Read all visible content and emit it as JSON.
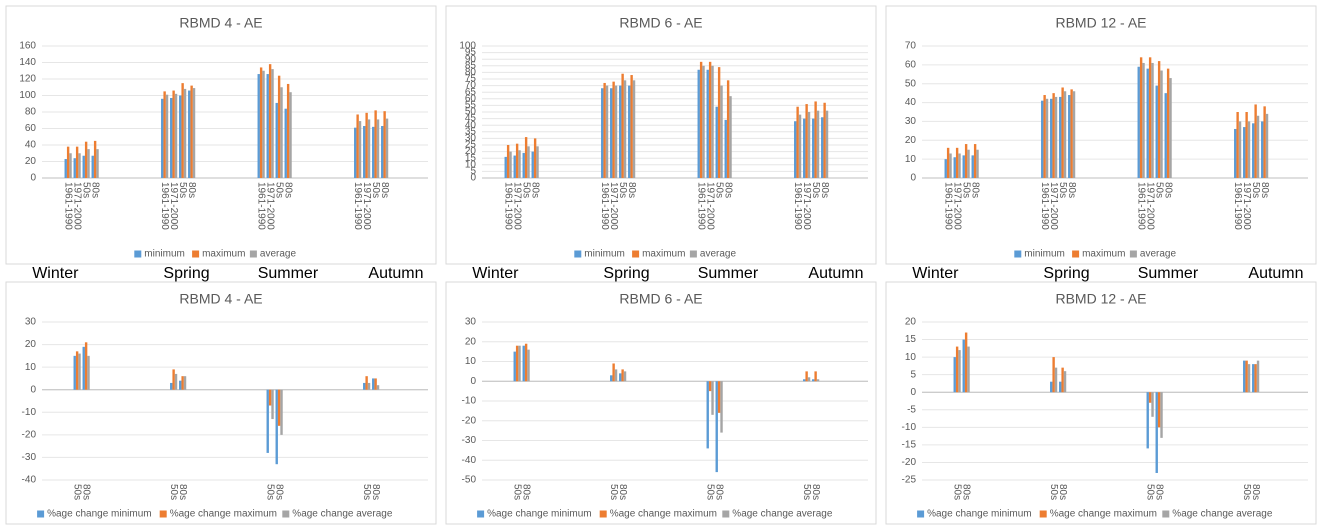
{
  "chart_data": [
    {
      "type": "bar",
      "title": "RBMD 4 - AE",
      "categories": [
        "1961-1990",
        "1971-2000",
        "50s",
        "80s",
        "1961-1990",
        "1971-2000",
        "50s",
        "80s",
        "1961-1990",
        "1971-2000",
        "50s",
        "80s",
        "1961-1990",
        "1971-2000",
        "50s",
        "80s"
      ],
      "series": [
        {
          "name": "minimum",
          "color": "#5b9bd5",
          "values": [
            23,
            24,
            27,
            27,
            96,
            97,
            100,
            106,
            126,
            126,
            91,
            84,
            61,
            63,
            62,
            63
          ]
        },
        {
          "name": "maximum",
          "color": "#ed7d31",
          "values": [
            38,
            38,
            44,
            45,
            105,
            106,
            115,
            112,
            134,
            138,
            124,
            114,
            77,
            79,
            82,
            81
          ]
        },
        {
          "name": "average",
          "color": "#a5a5a5",
          "values": [
            30,
            30,
            35,
            35,
            101,
            102,
            108,
            109,
            130,
            132,
            110,
            104,
            69,
            71,
            71,
            72
          ]
        }
      ],
      "ylim": [
        0,
        160
      ],
      "yticks": [
        0,
        20,
        40,
        60,
        80,
        100,
        120,
        140,
        160
      ],
      "grid": true,
      "legend": "bottom",
      "season_labels": [
        "Winter",
        "Spring",
        "Summer",
        "Autumn"
      ]
    },
    {
      "type": "bar",
      "title": "RBMD 6 - AE",
      "categories": [
        "1961-1990",
        "1971-2000",
        "50s",
        "80s",
        "1961-1990",
        "1971-2000",
        "50s",
        "80s",
        "1961-1990",
        "1971-2000",
        "50s",
        "80s",
        "1961-1990",
        "1971-2000",
        "50s",
        "80s"
      ],
      "series": [
        {
          "name": "minimum",
          "color": "#5b9bd5",
          "values": [
            16,
            17,
            19,
            20,
            68,
            68,
            70,
            70,
            82,
            82,
            54,
            44,
            43,
            45,
            45,
            46
          ]
        },
        {
          "name": "maximum",
          "color": "#ed7d31",
          "values": [
            25,
            26,
            31,
            30,
            72,
            73,
            79,
            78,
            88,
            88,
            84,
            74,
            54,
            56,
            58,
            57
          ]
        },
        {
          "name": "average",
          "color": "#a5a5a5",
          "values": [
            20,
            21,
            24,
            24,
            70,
            70,
            74,
            74,
            85,
            85,
            70,
            62,
            48,
            50,
            51,
            51
          ]
        }
      ],
      "ylim": [
        0,
        100
      ],
      "yticks": [
        0,
        5,
        10,
        15,
        20,
        25,
        30,
        35,
        40,
        45,
        50,
        55,
        60,
        65,
        70,
        75,
        80,
        85,
        90,
        95,
        100
      ],
      "grid": true,
      "legend": "bottom",
      "season_labels": [
        "Winter",
        "Spring",
        "Summer",
        "Autumn"
      ]
    },
    {
      "type": "bar",
      "title": "RBMD 12 - AE",
      "categories": [
        "1961-1990",
        "1971-2000",
        "50s",
        "80s",
        "1961-1990",
        "1971-2000",
        "50s",
        "80s",
        "1961-1990",
        "1971-2000",
        "50s",
        "80s",
        "1961-1990",
        "1971-2000",
        "50s",
        "80s"
      ],
      "series": [
        {
          "name": "minimum",
          "color": "#5b9bd5",
          "values": [
            10,
            11,
            12,
            12,
            41,
            42,
            43,
            44,
            59,
            58,
            49,
            45,
            26,
            27,
            29,
            30
          ]
        },
        {
          "name": "maximum",
          "color": "#ed7d31",
          "values": [
            16,
            16,
            18,
            18,
            44,
            45,
            48,
            47,
            64,
            64,
            62,
            58,
            35,
            35,
            39,
            38
          ]
        },
        {
          "name": "average",
          "color": "#a5a5a5",
          "values": [
            13,
            13,
            15,
            15,
            42,
            43,
            46,
            46,
            61,
            61,
            57,
            53,
            30,
            30,
            33,
            34
          ]
        }
      ],
      "ylim": [
        0,
        70
      ],
      "yticks": [
        0,
        10,
        20,
        30,
        40,
        50,
        60,
        70
      ],
      "grid": true,
      "legend": "bottom",
      "season_labels": [
        "Winter",
        "Spring",
        "Summer",
        "Autumn"
      ]
    },
    {
      "type": "bar",
      "title": "RBMD 4 - AE",
      "categories": [
        "50s",
        "80s",
        "50s",
        "80s",
        "50s",
        "80s",
        "50s",
        "80s"
      ],
      "series": [
        {
          "name": "%age change minimum",
          "color": "#5b9bd5",
          "values": [
            15,
            19,
            3,
            4,
            -28,
            -33,
            3,
            5
          ]
        },
        {
          "name": "%age change maximum",
          "color": "#ed7d31",
          "values": [
            17,
            21,
            9,
            6,
            -7,
            -16,
            6,
            5
          ]
        },
        {
          "name": "%age change average",
          "color": "#a5a5a5",
          "values": [
            16,
            15,
            7,
            6,
            -13,
            -20,
            3,
            2
          ]
        }
      ],
      "ylim": [
        -40,
        30
      ],
      "yticks": [
        -40,
        -30,
        -20,
        -10,
        0,
        10,
        20,
        30
      ],
      "grid": true,
      "legend": "bottom"
    },
    {
      "type": "bar",
      "title": "RBMD 6 - AE",
      "categories": [
        "50s",
        "80s",
        "50s",
        "80s",
        "50s",
        "80s",
        "50s",
        "80s"
      ],
      "series": [
        {
          "name": "%age change minimum",
          "color": "#5b9bd5",
          "values": [
            15,
            18,
            3,
            4,
            -34,
            -46,
            1,
            1
          ]
        },
        {
          "name": "%age change maximum",
          "color": "#ed7d31",
          "values": [
            18,
            19,
            9,
            6,
            -5,
            -16,
            5,
            5
          ]
        },
        {
          "name": "%age change average",
          "color": "#a5a5a5",
          "values": [
            18,
            16,
            6,
            5,
            -17,
            -26,
            2,
            1
          ]
        }
      ],
      "ylim": [
        -50,
        30
      ],
      "yticks": [
        -50,
        -40,
        -30,
        -20,
        -10,
        0,
        10,
        20,
        30
      ],
      "grid": true,
      "legend": "bottom"
    },
    {
      "type": "bar",
      "title": "RBMD 12 - AE",
      "categories": [
        "50s",
        "80s",
        "50s",
        "80s",
        "50s",
        "80s",
        "50s",
        "80s"
      ],
      "series": [
        {
          "name": "%age change minimum",
          "color": "#5b9bd5",
          "values": [
            10,
            15,
            3,
            3,
            -16,
            -23,
            9,
            8
          ]
        },
        {
          "name": "%age change maximum",
          "color": "#ed7d31",
          "values": [
            13,
            17,
            10,
            7,
            -3,
            -10,
            9,
            8
          ]
        },
        {
          "name": "%age change average",
          "color": "#a5a5a5",
          "values": [
            12,
            13,
            7,
            6,
            -7,
            -13,
            8,
            9
          ]
        }
      ],
      "ylim": [
        -25,
        20
      ],
      "yticks": [
        -25,
        -20,
        -15,
        -10,
        -5,
        0,
        5,
        10,
        15,
        20
      ],
      "grid": true,
      "legend": "bottom"
    }
  ]
}
